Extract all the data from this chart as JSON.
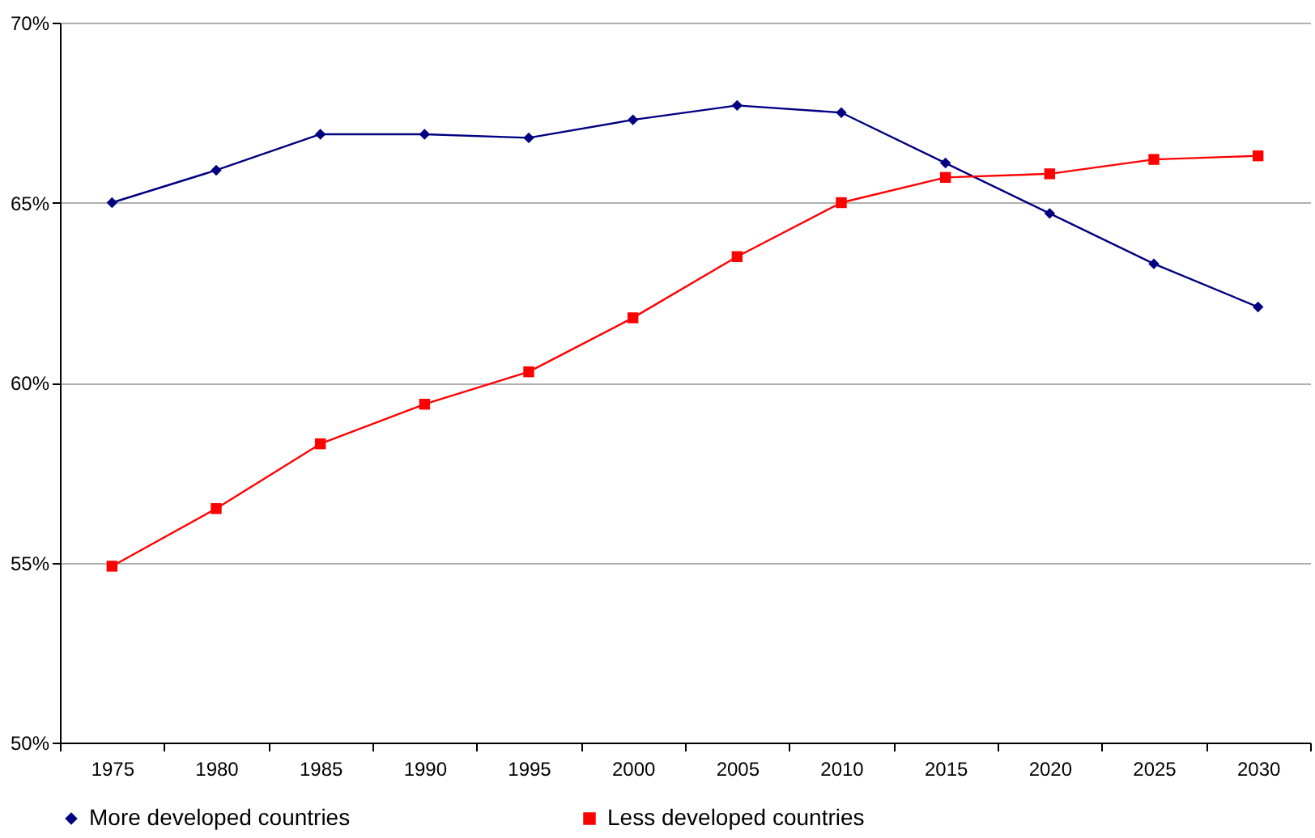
{
  "chart_data": {
    "type": "line",
    "categories": [
      "1975",
      "1980",
      "1985",
      "1990",
      "1995",
      "2000",
      "2005",
      "2010",
      "2015",
      "2020",
      "2025",
      "2030"
    ],
    "series": [
      {
        "name": "More developed countries",
        "color": "#000080",
        "marker": "diamond",
        "values": [
          65.0,
          65.9,
          66.9,
          66.9,
          66.8,
          67.3,
          67.7,
          67.5,
          66.1,
          64.7,
          63.3,
          62.1
        ]
      },
      {
        "name": "Less developed countries",
        "color": "#ff0000",
        "marker": "square",
        "values": [
          54.9,
          56.5,
          58.3,
          59.4,
          60.3,
          61.8,
          63.5,
          65.0,
          65.7,
          65.8,
          66.2,
          66.3
        ]
      }
    ],
    "ylim": [
      50,
      70
    ],
    "yticks": [
      {
        "value": 50,
        "label": "50%"
      },
      {
        "value": 55,
        "label": "55%"
      },
      {
        "value": 60,
        "label": "60%"
      },
      {
        "value": 65,
        "label": "65%"
      },
      {
        "value": 70,
        "label": "70%"
      }
    ],
    "grid": "y",
    "legend": "bottom",
    "line_style": "solid"
  }
}
